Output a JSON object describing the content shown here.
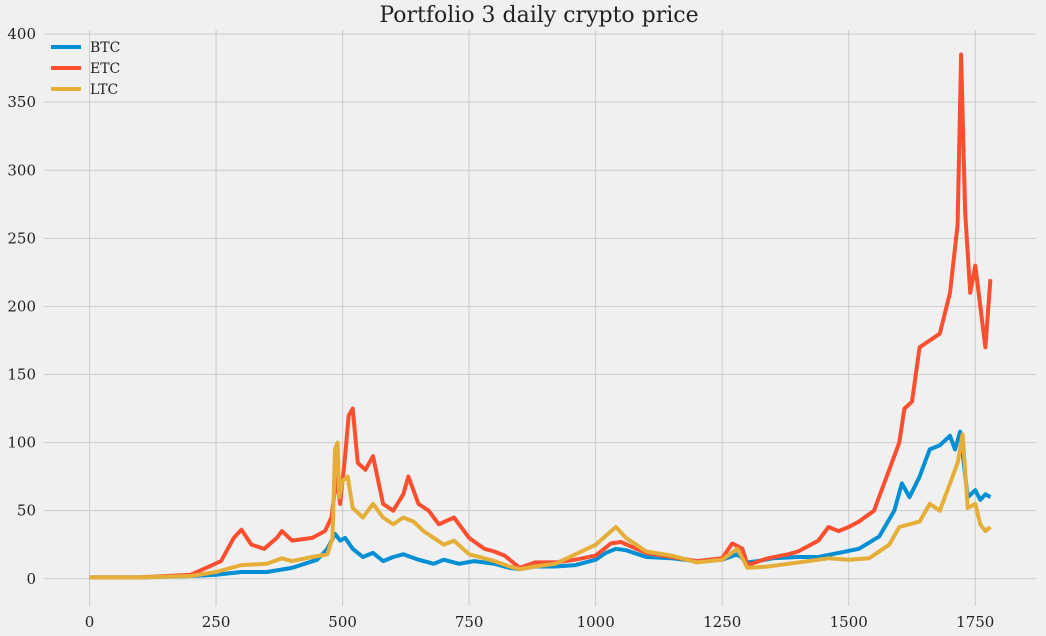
{
  "chart_data": {
    "type": "line",
    "title": "Portfolio 3 daily crypto price",
    "xlabel": "",
    "ylabel": "",
    "xlim": [
      -90,
      1870
    ],
    "ylim": [
      -20,
      403
    ],
    "x_ticks": [
      0,
      250,
      500,
      750,
      1000,
      1250,
      1500,
      1750
    ],
    "y_ticks": [
      0,
      50,
      100,
      150,
      200,
      250,
      300,
      350,
      400
    ],
    "grid": true,
    "legend_position": "top-left",
    "series": [
      {
        "name": "BTC",
        "color": "#008fd5",
        "points": [
          [
            0,
            1
          ],
          [
            100,
            1
          ],
          [
            200,
            2
          ],
          [
            250,
            3
          ],
          [
            300,
            5
          ],
          [
            350,
            5
          ],
          [
            400,
            8
          ],
          [
            450,
            14
          ],
          [
            470,
            22
          ],
          [
            485,
            33
          ],
          [
            495,
            28
          ],
          [
            505,
            30
          ],
          [
            520,
            22
          ],
          [
            540,
            16
          ],
          [
            560,
            19
          ],
          [
            580,
            13
          ],
          [
            600,
            16
          ],
          [
            620,
            18
          ],
          [
            650,
            14
          ],
          [
            680,
            11
          ],
          [
            700,
            14
          ],
          [
            730,
            11
          ],
          [
            760,
            13
          ],
          [
            800,
            11
          ],
          [
            830,
            8
          ],
          [
            850,
            7
          ],
          [
            880,
            9
          ],
          [
            920,
            9
          ],
          [
            960,
            10
          ],
          [
            1000,
            14
          ],
          [
            1020,
            19
          ],
          [
            1040,
            22
          ],
          [
            1060,
            21
          ],
          [
            1100,
            16
          ],
          [
            1150,
            15
          ],
          [
            1200,
            13
          ],
          [
            1250,
            14
          ],
          [
            1280,
            18
          ],
          [
            1300,
            12
          ],
          [
            1320,
            13
          ],
          [
            1350,
            15
          ],
          [
            1400,
            16
          ],
          [
            1440,
            16
          ],
          [
            1480,
            19
          ],
          [
            1520,
            22
          ],
          [
            1560,
            31
          ],
          [
            1590,
            50
          ],
          [
            1605,
            70
          ],
          [
            1620,
            60
          ],
          [
            1640,
            75
          ],
          [
            1660,
            95
          ],
          [
            1680,
            98
          ],
          [
            1700,
            105
          ],
          [
            1710,
            95
          ],
          [
            1720,
            108
          ],
          [
            1735,
            60
          ],
          [
            1750,
            65
          ],
          [
            1760,
            58
          ],
          [
            1770,
            62
          ],
          [
            1780,
            60
          ]
        ]
      },
      {
        "name": "ETC",
        "color": "#fc4f30",
        "points": [
          [
            0,
            1
          ],
          [
            100,
            1
          ],
          [
            200,
            3
          ],
          [
            230,
            8
          ],
          [
            260,
            13
          ],
          [
            285,
            30
          ],
          [
            300,
            36
          ],
          [
            320,
            25
          ],
          [
            345,
            22
          ],
          [
            370,
            30
          ],
          [
            380,
            35
          ],
          [
            400,
            28
          ],
          [
            440,
            30
          ],
          [
            465,
            35
          ],
          [
            478,
            45
          ],
          [
            488,
            75
          ],
          [
            495,
            55
          ],
          [
            505,
            90
          ],
          [
            512,
            120
          ],
          [
            520,
            125
          ],
          [
            530,
            85
          ],
          [
            545,
            80
          ],
          [
            560,
            90
          ],
          [
            580,
            55
          ],
          [
            600,
            50
          ],
          [
            620,
            62
          ],
          [
            630,
            75
          ],
          [
            650,
            55
          ],
          [
            670,
            50
          ],
          [
            690,
            40
          ],
          [
            720,
            45
          ],
          [
            750,
            30
          ],
          [
            780,
            22
          ],
          [
            800,
            20
          ],
          [
            820,
            17
          ],
          [
            850,
            8
          ],
          [
            880,
            12
          ],
          [
            920,
            12
          ],
          [
            960,
            14
          ],
          [
            1000,
            17
          ],
          [
            1030,
            26
          ],
          [
            1050,
            27
          ],
          [
            1080,
            22
          ],
          [
            1100,
            19
          ],
          [
            1150,
            16
          ],
          [
            1200,
            13
          ],
          [
            1250,
            15
          ],
          [
            1270,
            26
          ],
          [
            1290,
            22
          ],
          [
            1300,
            10
          ],
          [
            1340,
            15
          ],
          [
            1380,
            18
          ],
          [
            1400,
            20
          ],
          [
            1440,
            28
          ],
          [
            1460,
            38
          ],
          [
            1480,
            35
          ],
          [
            1500,
            38
          ],
          [
            1520,
            42
          ],
          [
            1550,
            50
          ],
          [
            1580,
            80
          ],
          [
            1600,
            100
          ],
          [
            1610,
            125
          ],
          [
            1625,
            130
          ],
          [
            1640,
            170
          ],
          [
            1660,
            175
          ],
          [
            1680,
            180
          ],
          [
            1700,
            210
          ],
          [
            1715,
            260
          ],
          [
            1722,
            385
          ],
          [
            1730,
            270
          ],
          [
            1740,
            210
          ],
          [
            1750,
            230
          ],
          [
            1760,
            200
          ],
          [
            1770,
            170
          ],
          [
            1780,
            220
          ]
        ]
      },
      {
        "name": "LTC",
        "color": "#e5ae38",
        "points": [
          [
            0,
            1
          ],
          [
            100,
            1
          ],
          [
            200,
            2
          ],
          [
            250,
            5
          ],
          [
            300,
            10
          ],
          [
            350,
            11
          ],
          [
            380,
            15
          ],
          [
            400,
            13
          ],
          [
            440,
            16
          ],
          [
            470,
            18
          ],
          [
            480,
            30
          ],
          [
            485,
            95
          ],
          [
            490,
            100
          ],
          [
            493,
            60
          ],
          [
            500,
            72
          ],
          [
            510,
            75
          ],
          [
            520,
            52
          ],
          [
            540,
            45
          ],
          [
            560,
            55
          ],
          [
            580,
            45
          ],
          [
            600,
            40
          ],
          [
            620,
            45
          ],
          [
            640,
            42
          ],
          [
            660,
            35
          ],
          [
            680,
            30
          ],
          [
            700,
            25
          ],
          [
            720,
            28
          ],
          [
            750,
            18
          ],
          [
            780,
            15
          ],
          [
            800,
            13
          ],
          [
            830,
            9
          ],
          [
            850,
            7
          ],
          [
            880,
            9
          ],
          [
            920,
            11
          ],
          [
            960,
            18
          ],
          [
            1000,
            25
          ],
          [
            1040,
            38
          ],
          [
            1060,
            30
          ],
          [
            1080,
            25
          ],
          [
            1100,
            20
          ],
          [
            1150,
            17
          ],
          [
            1200,
            12
          ],
          [
            1250,
            14
          ],
          [
            1280,
            22
          ],
          [
            1300,
            8
          ],
          [
            1340,
            9
          ],
          [
            1380,
            11
          ],
          [
            1420,
            13
          ],
          [
            1460,
            15
          ],
          [
            1500,
            14
          ],
          [
            1540,
            15
          ],
          [
            1580,
            25
          ],
          [
            1600,
            38
          ],
          [
            1620,
            40
          ],
          [
            1640,
            42
          ],
          [
            1660,
            55
          ],
          [
            1680,
            50
          ],
          [
            1700,
            70
          ],
          [
            1715,
            85
          ],
          [
            1725,
            106
          ],
          [
            1735,
            52
          ],
          [
            1750,
            55
          ],
          [
            1760,
            40
          ],
          [
            1770,
            35
          ],
          [
            1780,
            38
          ]
        ]
      }
    ]
  }
}
